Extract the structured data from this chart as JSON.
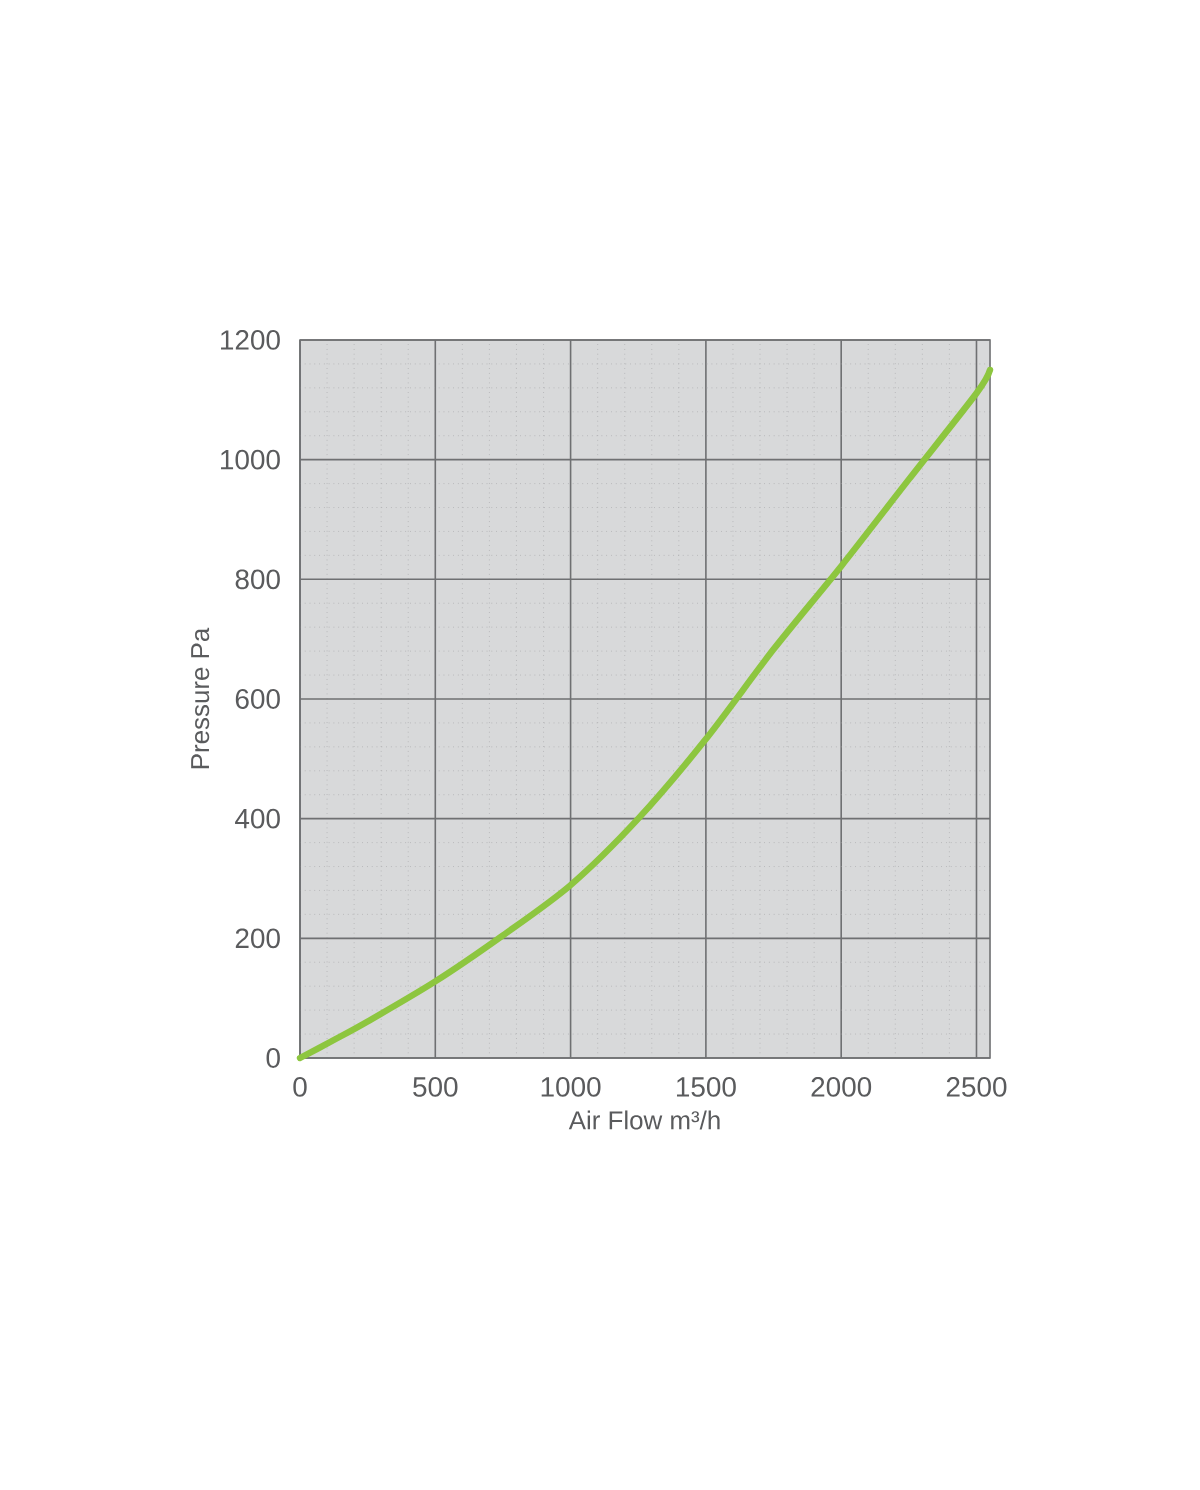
{
  "chart_data": {
    "type": "line",
    "xlabel": "Air Flow m³/h",
    "ylabel": "Pressure Pa",
    "x": [
      0,
      125,
      250,
      500,
      750,
      1000,
      1250,
      1500,
      1750,
      2000,
      2250,
      2500,
      2550
    ],
    "series": [
      {
        "color": "#8dc63f",
        "values": [
          0,
          30,
          61,
          128,
          205,
          289,
          400,
          533,
          683,
          822,
          967,
          1111,
          1150
        ]
      }
    ],
    "xlim": [
      0,
      2550
    ],
    "ylim": [
      0,
      1200
    ],
    "xticks": [
      0,
      500,
      1000,
      1500,
      2000,
      2500
    ],
    "yticks": [
      0,
      200,
      400,
      600,
      800,
      1000,
      1200
    ],
    "grid": true
  }
}
